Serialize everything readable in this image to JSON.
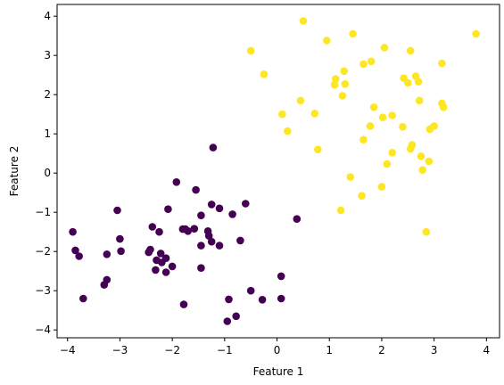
{
  "chart_data": {
    "type": "scatter",
    "title": "",
    "xlabel": "Feature 1",
    "ylabel": "Feature 2",
    "xlim": [
      -4.2,
      4.25
    ],
    "ylim": [
      -4.2,
      4.3
    ],
    "xticks": [
      -4,
      -3,
      -2,
      -1,
      0,
      1,
      2,
      3,
      4
    ],
    "yticks": [
      -4,
      -3,
      -2,
      -1,
      0,
      1,
      2,
      3,
      4
    ],
    "grid": false,
    "legend": "none",
    "series": [
      {
        "color": "#440154",
        "points": [
          [
            -3.9,
            -1.5
          ],
          [
            -3.85,
            -1.97
          ],
          [
            -3.78,
            -2.12
          ],
          [
            -3.7,
            -3.2
          ],
          [
            -3.3,
            -2.85
          ],
          [
            -3.25,
            -2.72
          ],
          [
            -3.25,
            -2.07
          ],
          [
            -3.05,
            -0.95
          ],
          [
            -3.0,
            -1.68
          ],
          [
            -2.98,
            -1.99
          ],
          [
            -2.45,
            -2.02
          ],
          [
            -2.42,
            -1.95
          ],
          [
            -2.38,
            -1.37
          ],
          [
            -2.3,
            -2.22
          ],
          [
            -2.32,
            -2.47
          ],
          [
            -2.25,
            -1.5
          ],
          [
            -2.22,
            -2.05
          ],
          [
            -2.2,
            -2.28
          ],
          [
            -2.12,
            -2.17
          ],
          [
            -2.12,
            -2.53
          ],
          [
            -2.08,
            -0.92
          ],
          [
            -2.0,
            -2.38
          ],
          [
            -1.92,
            -0.23
          ],
          [
            -1.8,
            -1.43
          ],
          [
            -1.75,
            -1.43
          ],
          [
            -1.78,
            -3.35
          ],
          [
            -1.7,
            -1.48
          ],
          [
            -1.58,
            -1.42
          ],
          [
            -1.55,
            -0.43
          ],
          [
            -1.45,
            -2.42
          ],
          [
            -1.45,
            -1.85
          ],
          [
            -1.45,
            -1.08
          ],
          [
            -1.32,
            -1.48
          ],
          [
            -1.3,
            -1.6
          ],
          [
            -1.25,
            -1.75
          ],
          [
            -1.25,
            -0.8
          ],
          [
            -1.22,
            0.65
          ],
          [
            -1.1,
            -0.9
          ],
          [
            -1.1,
            -1.85
          ],
          [
            -0.95,
            -3.78
          ],
          [
            -0.92,
            -3.22
          ],
          [
            -0.85,
            -1.05
          ],
          [
            -0.78,
            -3.65
          ],
          [
            -0.7,
            -1.72
          ],
          [
            -0.6,
            -0.78
          ],
          [
            -0.5,
            -3.0
          ],
          [
            -0.28,
            -3.23
          ],
          [
            0.08,
            -2.63
          ],
          [
            0.08,
            -3.2
          ],
          [
            0.38,
            -1.17
          ]
        ]
      },
      {
        "color": "#fde725",
        "points": [
          [
            -0.5,
            3.12
          ],
          [
            -0.25,
            2.52
          ],
          [
            0.1,
            1.5
          ],
          [
            0.2,
            1.07
          ],
          [
            0.45,
            1.85
          ],
          [
            0.5,
            3.88
          ],
          [
            0.72,
            1.52
          ],
          [
            0.78,
            0.6
          ],
          [
            0.95,
            3.38
          ],
          [
            1.1,
            2.25
          ],
          [
            1.12,
            2.4
          ],
          [
            1.22,
            -0.95
          ],
          [
            1.25,
            1.97
          ],
          [
            1.28,
            2.6
          ],
          [
            1.3,
            2.27
          ],
          [
            1.4,
            -0.1
          ],
          [
            1.45,
            3.55
          ],
          [
            1.62,
            -0.58
          ],
          [
            1.65,
            2.78
          ],
          [
            1.65,
            0.85
          ],
          [
            1.78,
            1.2
          ],
          [
            1.8,
            2.85
          ],
          [
            1.85,
            1.68
          ],
          [
            2.0,
            -0.35
          ],
          [
            2.02,
            1.42
          ],
          [
            2.05,
            3.2
          ],
          [
            2.1,
            0.23
          ],
          [
            2.2,
            1.47
          ],
          [
            2.2,
            0.52
          ],
          [
            2.4,
            1.18
          ],
          [
            2.42,
            2.42
          ],
          [
            2.5,
            2.3
          ],
          [
            2.55,
            3.12
          ],
          [
            2.55,
            0.62
          ],
          [
            2.58,
            0.72
          ],
          [
            2.65,
            2.47
          ],
          [
            2.7,
            2.33
          ],
          [
            2.72,
            1.85
          ],
          [
            2.75,
            0.43
          ],
          [
            2.78,
            0.08
          ],
          [
            2.85,
            -1.5
          ],
          [
            2.9,
            0.3
          ],
          [
            2.92,
            1.12
          ],
          [
            3.0,
            1.2
          ],
          [
            3.15,
            2.8
          ],
          [
            3.15,
            1.78
          ],
          [
            3.18,
            1.68
          ],
          [
            3.8,
            3.55
          ]
        ]
      }
    ]
  }
}
